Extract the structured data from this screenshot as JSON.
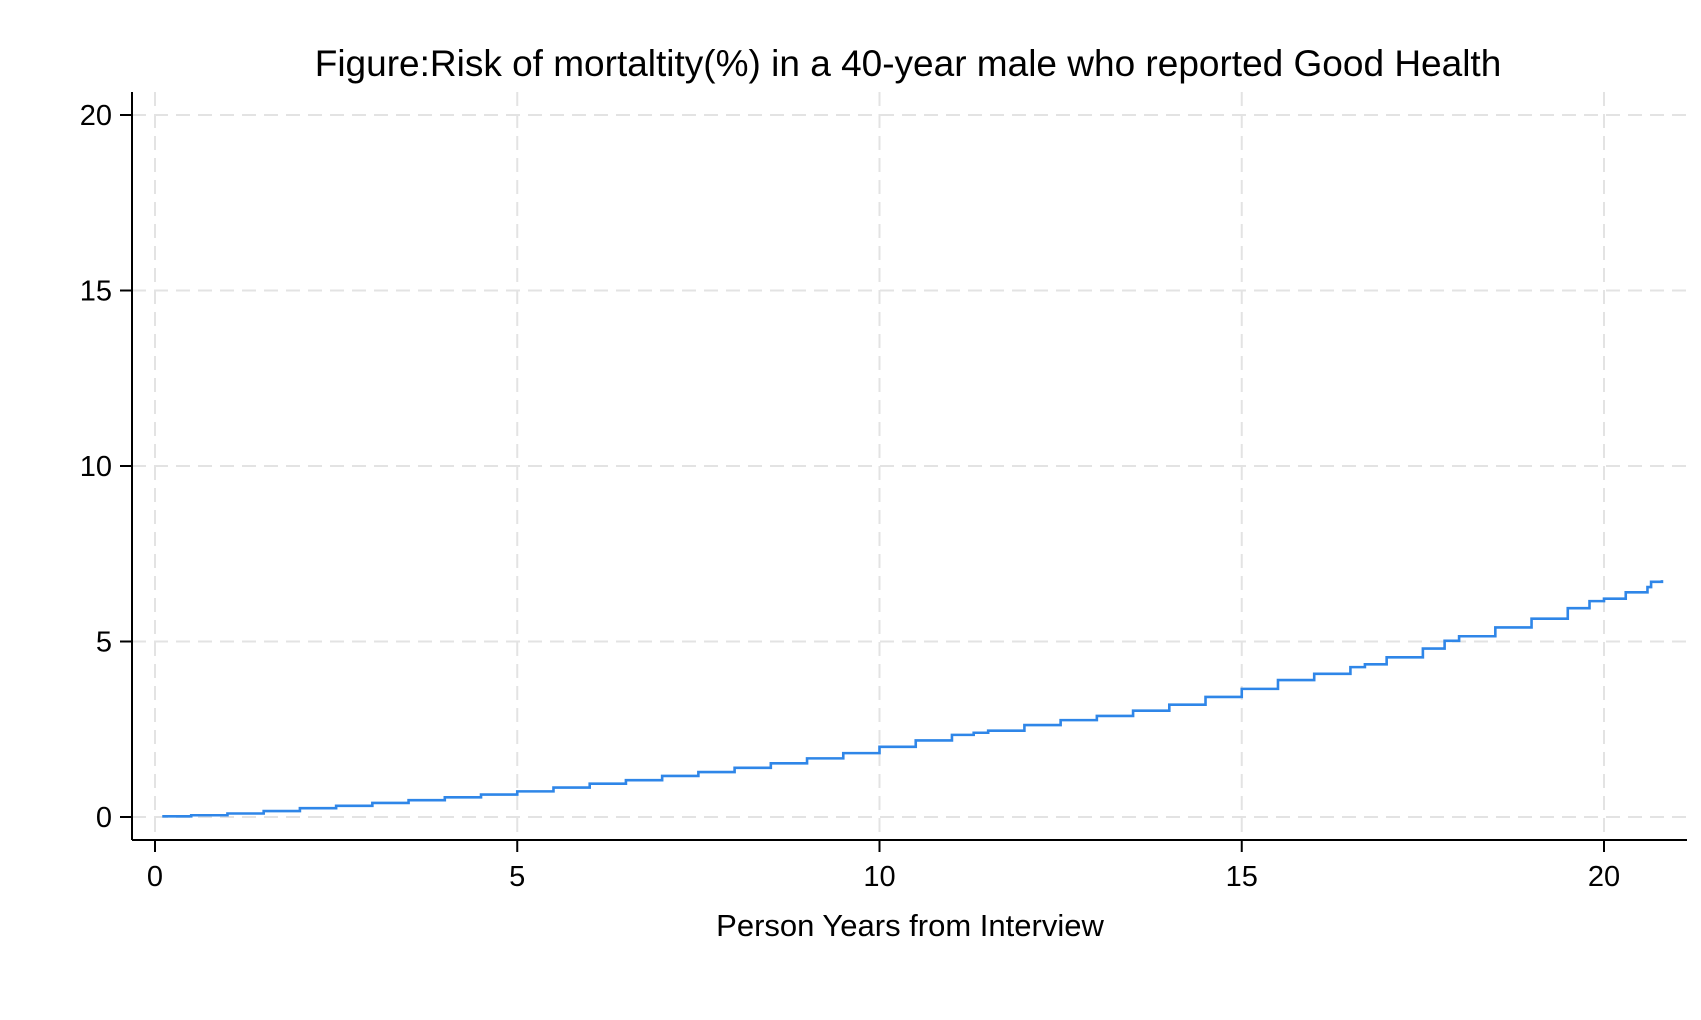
{
  "chart_data": {
    "type": "line",
    "title": "Figure:Risk of mortaltity(%) in a 40-year male who reported Good Health",
    "xlabel": "Person Years from Interview",
    "ylabel": "",
    "xlim": [
      0,
      21
    ],
    "ylim": [
      0,
      20
    ],
    "xticks": [
      "0",
      "5",
      "10",
      "15",
      "20"
    ],
    "yticks": [
      "0",
      "5",
      "10",
      "15",
      "20"
    ],
    "grid": true,
    "series": [
      {
        "color": "#2f86e8",
        "step": true,
        "x": [
          0.1,
          0.5,
          1.0,
          1.5,
          2.0,
          2.5,
          3.0,
          3.5,
          4.0,
          4.5,
          5.0,
          5.5,
          6.0,
          6.5,
          7.0,
          7.5,
          8.0,
          8.5,
          9.0,
          9.5,
          10.0,
          10.5,
          11.0,
          11.3,
          11.5,
          12.0,
          12.5,
          13.0,
          13.5,
          14.0,
          14.5,
          15.0,
          15.5,
          16.0,
          16.5,
          16.7,
          17.0,
          17.5,
          17.8,
          18.0,
          18.5,
          19.0,
          19.5,
          19.8,
          20.0,
          20.3,
          20.6,
          20.65,
          20.8
        ],
        "y": [
          0.02,
          0.05,
          0.1,
          0.17,
          0.25,
          0.32,
          0.4,
          0.48,
          0.56,
          0.64,
          0.73,
          0.84,
          0.95,
          1.05,
          1.17,
          1.28,
          1.4,
          1.53,
          1.67,
          1.82,
          2.0,
          2.18,
          2.34,
          2.4,
          2.46,
          2.62,
          2.76,
          2.88,
          3.03,
          3.2,
          3.42,
          3.65,
          3.9,
          4.08,
          4.27,
          4.35,
          4.55,
          4.8,
          5.02,
          5.15,
          5.4,
          5.65,
          5.95,
          6.15,
          6.22,
          6.4,
          6.55,
          6.7,
          6.75
        ]
      }
    ]
  }
}
